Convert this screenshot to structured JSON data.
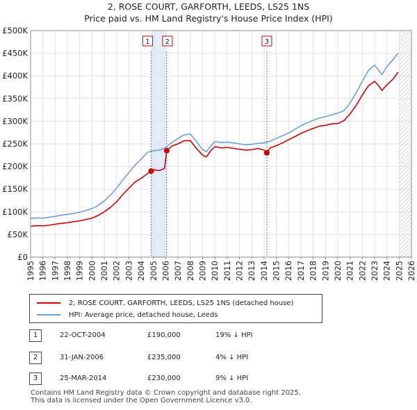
{
  "chart_data": {
    "type": "line",
    "title": "2, ROSE COURT, GARFORTH, LEEDS, LS25 1NS",
    "subtitle": "Price paid vs. HM Land Registry's House Price Index (HPI)",
    "xlabel": "",
    "ylabel": "",
    "xlim": [
      1995,
      2026
    ],
    "ylim": [
      0,
      500000
    ],
    "x_ticks": [
      1995,
      1996,
      1997,
      1998,
      1999,
      2000,
      2001,
      2002,
      2003,
      2004,
      2005,
      2006,
      2007,
      2008,
      2009,
      2010,
      2011,
      2012,
      2013,
      2014,
      2015,
      2016,
      2017,
      2018,
      2019,
      2020,
      2021,
      2022,
      2023,
      2024,
      2025,
      2026
    ],
    "y_ticks": [
      0,
      50000,
      100000,
      150000,
      200000,
      250000,
      300000,
      350000,
      400000,
      450000,
      500000
    ],
    "y_tick_labels": [
      "£0",
      "£50K",
      "£100K",
      "£150K",
      "£200K",
      "£250K",
      "£300K",
      "£350K",
      "£400K",
      "£450K",
      "£500K"
    ],
    "grid": true,
    "colors": {
      "price": "#cc0000",
      "hpi": "#6f9fd8",
      "highlight": "#dde8f7",
      "hatch": "#c8c8c8"
    },
    "series": [
      {
        "name": "2, ROSE COURT, GARFORTH, LEEDS, LS25 1NS (detached house)",
        "color": "#cc0000",
        "x": [
          1995.0,
          1995.5,
          1996.0,
          1996.5,
          1997.0,
          1997.5,
          1998.0,
          1998.5,
          1999.0,
          1999.5,
          2000.0,
          2000.5,
          2001.0,
          2001.5,
          2002.0,
          2002.5,
          2003.0,
          2003.5,
          2004.0,
          2004.5,
          2004.81,
          2005.0,
          2005.5,
          2005.9,
          2006.08,
          2006.5,
          2007.0,
          2007.5,
          2008.0,
          2008.5,
          2009.0,
          2009.3,
          2009.7,
          2010.0,
          2010.5,
          2011.0,
          2011.5,
          2012.0,
          2012.5,
          2013.0,
          2013.5,
          2014.0,
          2014.23,
          2014.5,
          2015.0,
          2015.5,
          2016.0,
          2016.5,
          2017.0,
          2017.5,
          2018.0,
          2018.5,
          2019.0,
          2019.5,
          2020.0,
          2020.5,
          2021.0,
          2021.5,
          2022.0,
          2022.5,
          2023.0,
          2023.3,
          2023.6,
          2024.0,
          2024.5,
          2024.9
        ],
        "values": [
          68000,
          69500,
          69000,
          70500,
          72500,
          74500,
          76000,
          78000,
          80000,
          83000,
          86000,
          92000,
          100000,
          110000,
          122000,
          138000,
          152000,
          166000,
          174000,
          184000,
          190000,
          193000,
          191000,
          196000,
          235000,
          245000,
          250000,
          257000,
          257000,
          240000,
          225000,
          221000,
          236000,
          244000,
          241000,
          242000,
          240000,
          238000,
          236000,
          237000,
          240000,
          236000,
          230000,
          241000,
          246000,
          252000,
          259000,
          266000,
          273000,
          279000,
          284000,
          289000,
          291000,
          294000,
          295000,
          301000,
          316000,
          335000,
          358000,
          378000,
          388000,
          379000,
          368000,
          380000,
          393000,
          408000
        ]
      },
      {
        "name": "HPI: Average price, detached house, Leeds",
        "color": "#6f9fd8",
        "x": [
          1995.0,
          1995.5,
          1996.0,
          1996.5,
          1997.0,
          1997.5,
          1998.0,
          1998.5,
          1999.0,
          1999.5,
          2000.0,
          2000.5,
          2001.0,
          2001.5,
          2002.0,
          2002.5,
          2003.0,
          2003.5,
          2004.0,
          2004.5,
          2005.0,
          2005.5,
          2006.0,
          2006.5,
          2007.0,
          2007.5,
          2008.0,
          2008.5,
          2009.0,
          2009.3,
          2009.7,
          2010.0,
          2010.5,
          2011.0,
          2011.5,
          2012.0,
          2012.5,
          2013.0,
          2013.5,
          2014.0,
          2014.5,
          2015.0,
          2015.5,
          2016.0,
          2016.5,
          2017.0,
          2017.5,
          2018.0,
          2018.5,
          2019.0,
          2019.5,
          2020.0,
          2020.5,
          2021.0,
          2021.5,
          2022.0,
          2022.5,
          2023.0,
          2023.3,
          2023.6,
          2024.0,
          2024.5,
          2024.9
        ],
        "values": [
          85000,
          86500,
          86000,
          88000,
          90000,
          92500,
          94500,
          96500,
          99000,
          103000,
          107000,
          114000,
          124000,
          137000,
          152000,
          170000,
          187000,
          203000,
          216000,
          231000,
          235000,
          236000,
          242000,
          253000,
          262000,
          270000,
          272000,
          255000,
          237000,
          233000,
          246000,
          255000,
          253000,
          254000,
          252000,
          250000,
          248000,
          249000,
          251000,
          252000,
          256000,
          262000,
          268000,
          274000,
          282000,
          290000,
          296000,
          302000,
          307000,
          310000,
          314000,
          318000,
          323000,
          340000,
          363000,
          388000,
          412000,
          424000,
          413000,
          403000,
          420000,
          436000,
          450000
        ]
      }
    ],
    "transactions": [
      {
        "id": "1",
        "date": "22-OCT-2004",
        "x": 2004.81,
        "price": 190000,
        "price_label": "£190,000",
        "hpi_diff": "19% ↓ HPI"
      },
      {
        "id": "2",
        "date": "31-JAN-2006",
        "x": 2006.08,
        "price": 235000,
        "price_label": "£235,000",
        "hpi_diff": "4% ↓ HPI"
      },
      {
        "id": "3",
        "date": "25-MAR-2014",
        "x": 2014.23,
        "price": 230000,
        "price_label": "£230,000",
        "hpi_diff": "9% ↓ HPI"
      }
    ],
    "highlight_range": [
      2004.81,
      2006.08
    ],
    "hatch_from": 2025.0
  },
  "footer": {
    "line1": "Contains HM Land Registry data © Crown copyright and database right 2025.",
    "line2": "This data is licensed under the Open Government Licence v3.0."
  }
}
